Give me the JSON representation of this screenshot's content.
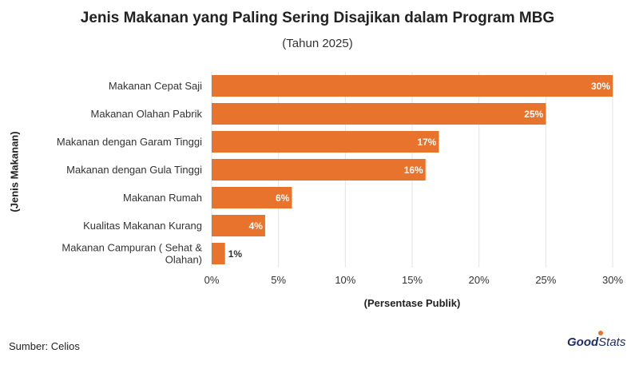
{
  "source": "Sumber: Celios",
  "logo": {
    "good": "Good",
    "stats": "Stats",
    "dot_color": "#e8732c"
  },
  "chart_data": {
    "type": "bar",
    "orientation": "horizontal",
    "title": "Jenis Makanan yang Paling Sering Disajikan dalam Program MBG",
    "subtitle": "(Tahun 2025)",
    "xlabel": "(Persentase Publik)",
    "ylabel": "(Jenis Makanan)",
    "categories": [
      [
        "Makanan Cepat Saji"
      ],
      [
        "Makanan Olahan Pabrik"
      ],
      [
        "Makanan dengan Garam Tinggi"
      ],
      [
        "Makanan dengan Gula Tinggi"
      ],
      [
        "Makanan Rumah"
      ],
      [
        "Kualitas Makanan Kurang"
      ],
      [
        "Makanan Campuran ( Sehat &",
        "Olahan)"
      ]
    ],
    "values": [
      30,
      25,
      17,
      16,
      6,
      4,
      1
    ],
    "data_labels": [
      "30%",
      "25%",
      "17%",
      "16%",
      "6%",
      "4%",
      "1%"
    ],
    "xlim": [
      0,
      30
    ],
    "xticks": [
      0,
      5,
      10,
      15,
      20,
      25,
      30
    ],
    "xtick_labels": [
      "0%",
      "5%",
      "10%",
      "15%",
      "20%",
      "25%",
      "30%"
    ],
    "grid": true,
    "bar_color": "#e8732c",
    "grid_color": "#e3e3e3"
  }
}
